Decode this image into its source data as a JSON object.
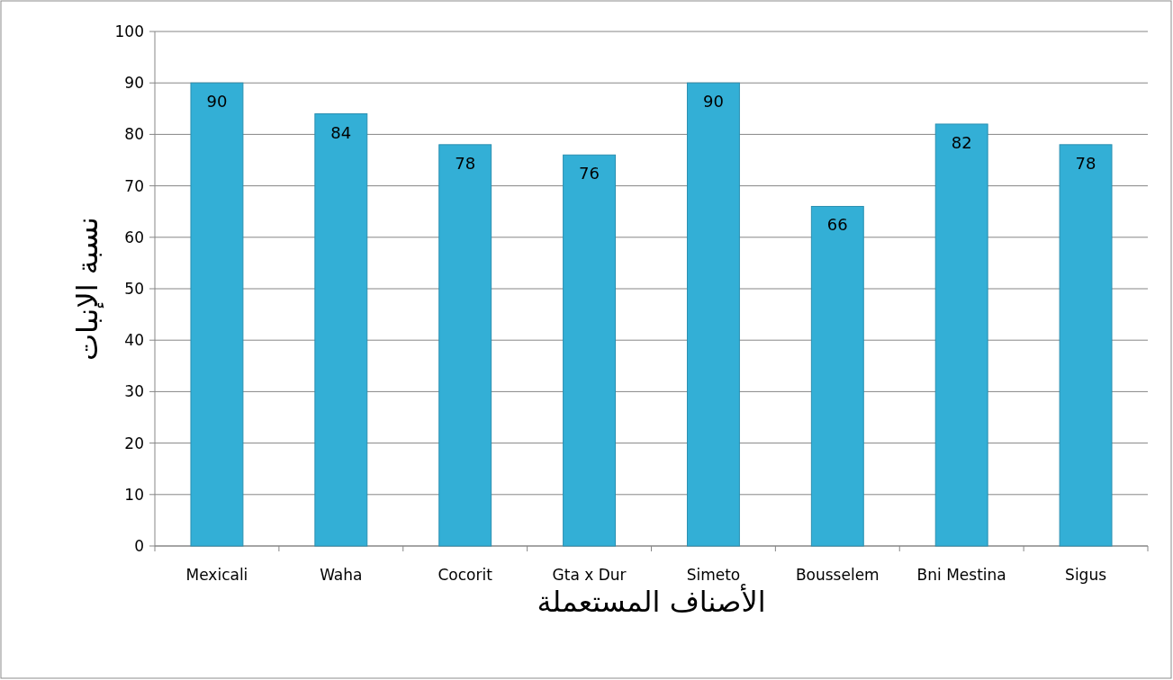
{
  "chart_data": {
    "type": "bar",
    "xlabel": "الأصناف المستعملة",
    "ylabel": "نسبة الإنبات",
    "categories": [
      "Mexicali",
      "Waha",
      "Cocorit",
      "Gta x Dur",
      "Simeto",
      "Bousselem",
      "Bni Mestina",
      "Sigus"
    ],
    "values": [
      90,
      84,
      78,
      76,
      90,
      66,
      82,
      78
    ],
    "color": "#33afd6",
    "ylim": [
      0,
      100
    ],
    "yticks": [
      0,
      10,
      20,
      30,
      40,
      50,
      60,
      70,
      80,
      90,
      100
    ],
    "grid": "y",
    "data_labels": true
  }
}
